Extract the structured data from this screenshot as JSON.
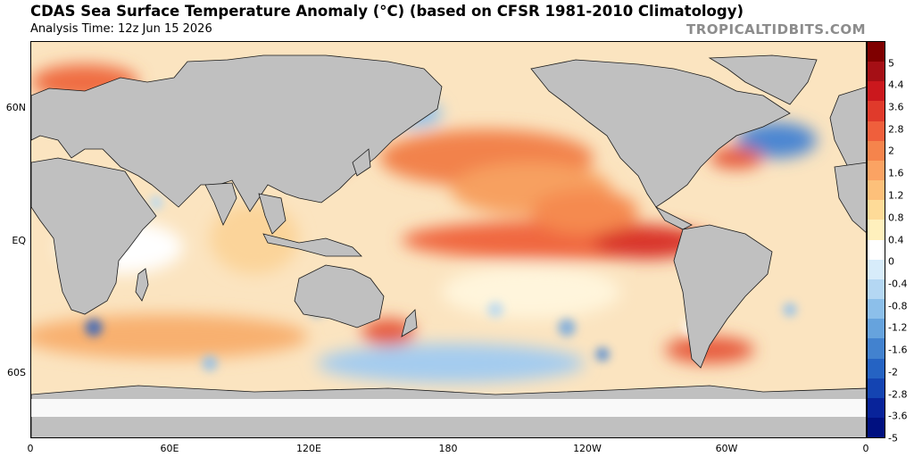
{
  "header": {
    "title": "CDAS Sea Surface Temperature Anomaly (°C) (based on CFSR 1981-2010 Climatology)",
    "subtitle": "Analysis Time: 12z Jun 15 2026",
    "brand": "TROPICALTIDBITS.COM"
  },
  "map": {
    "lat_labels": [
      "60N",
      "EQ",
      "60S"
    ],
    "lon_labels": [
      "0",
      "60E",
      "120E",
      "180",
      "120W",
      "60W",
      "0"
    ],
    "land_color": "#c0c0c0",
    "ice_color": "#ffffff"
  },
  "colorbar": {
    "labels": [
      "5",
      "4.4",
      "3.6",
      "2.8",
      "2",
      "1.6",
      "1.2",
      "0.8",
      "0.4",
      "0",
      "-0.4",
      "-0.8",
      "-1.2",
      "-1.6",
      "-2",
      "-2.8",
      "-3.6",
      "-5"
    ],
    "colors": [
      "#7f0000",
      "#a50f15",
      "#cb181d",
      "#e03a2b",
      "#ef5f3c",
      "#f5844c",
      "#fba363",
      "#fdc07a",
      "#fedb98",
      "#fff0bd",
      "#ffffff",
      "#d7ecfa",
      "#b4d7f3",
      "#8cbfea",
      "#66a3dd",
      "#4282cf",
      "#2563c3",
      "#1444b2",
      "#08239a",
      "#001080"
    ]
  }
}
